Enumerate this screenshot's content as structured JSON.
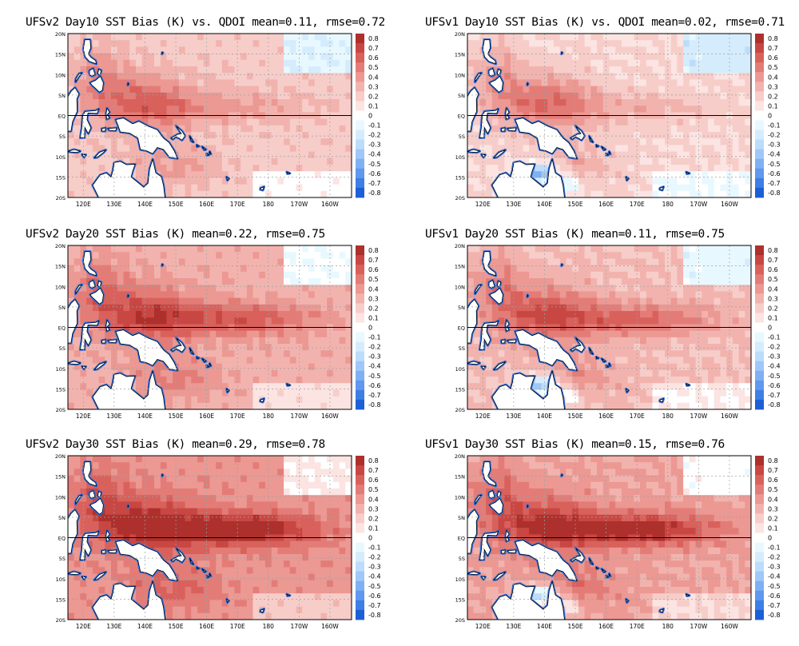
{
  "figure": {
    "panels": [
      {
        "title": "UFSv2 Day10 SST Bias (K) vs. QDOI mean=0.11, rmse=0.72"
      },
      {
        "title": "UFSv1 Day10 SST Bias (K) vs. QDOI mean=0.02, rmse=0.71"
      },
      {
        "title": "UFSv2 Day20 SST Bias (K) mean=0.22, rmse=0.75"
      },
      {
        "title": "UFSv1 Day20 SST Bias (K) mean=0.11, rmse=0.75"
      },
      {
        "title": "UFSv2 Day30 SST Bias (K) mean=0.29, rmse=0.78"
      },
      {
        "title": "UFSv1 Day30 SST Bias (K) mean=0.15, rmse=0.76"
      }
    ]
  },
  "chart_data": [
    {
      "type": "heatmap",
      "title": "UFSv2 Day10 SST Bias (K) vs. QDOI mean=0.11, rmse=0.72",
      "model": "UFSv2",
      "lead_day": 10,
      "mean": 0.11,
      "rmse": 0.72,
      "x_ticks": [
        "120E",
        "130E",
        "140E",
        "150E",
        "160E",
        "170E",
        "180",
        "170W",
        "160W"
      ],
      "y_ticks": [
        "20N",
        "15N",
        "10N",
        "5N",
        "EQ",
        "5S",
        "10S",
        "15S",
        "20S"
      ],
      "xlim": [
        115,
        207
      ],
      "ylim": [
        -20,
        20
      ],
      "colorbar_levels": [
        -0.8,
        -0.7,
        -0.6,
        -0.5,
        -0.4,
        -0.3,
        -0.2,
        -0.1,
        0,
        0.1,
        0.2,
        0.3,
        0.4,
        0.5,
        0.6,
        0.7,
        0.8
      ],
      "colorbar_labels": [
        "0.8",
        "0.7",
        "0.6",
        "0.5",
        "0.4",
        "0.3",
        "0.2",
        "0.1",
        "0",
        "-0.1",
        "-0.2",
        "-0.3",
        "-0.4",
        "-0.5",
        "-0.6",
        "-0.7",
        "-0.8"
      ],
      "grid": true
    },
    {
      "type": "heatmap",
      "title": "UFSv1 Day10 SST Bias (K) vs. QDOI mean=0.02, rmse=0.71",
      "model": "UFSv1",
      "lead_day": 10,
      "mean": 0.02,
      "rmse": 0.71,
      "x_ticks": [
        "120E",
        "130E",
        "140E",
        "150E",
        "160E",
        "170E",
        "180",
        "170W",
        "160W"
      ],
      "y_ticks": [
        "20N",
        "15N",
        "10N",
        "5N",
        "EQ",
        "5S",
        "10S",
        "15S",
        "20S"
      ],
      "xlim": [
        115,
        207
      ],
      "ylim": [
        -20,
        20
      ],
      "colorbar_levels": [
        -0.8,
        -0.7,
        -0.6,
        -0.5,
        -0.4,
        -0.3,
        -0.2,
        -0.1,
        0,
        0.1,
        0.2,
        0.3,
        0.4,
        0.5,
        0.6,
        0.7,
        0.8
      ],
      "colorbar_labels": [
        "0.8",
        "0.7",
        "0.6",
        "0.5",
        "0.4",
        "0.3",
        "0.2",
        "0.1",
        "0",
        "-0.1",
        "-0.2",
        "-0.3",
        "-0.4",
        "-0.5",
        "-0.6",
        "-0.7",
        "-0.8"
      ],
      "grid": true
    },
    {
      "type": "heatmap",
      "title": "UFSv2 Day20 SST Bias (K) mean=0.22, rmse=0.75",
      "model": "UFSv2",
      "lead_day": 20,
      "mean": 0.22,
      "rmse": 0.75,
      "x_ticks": [
        "120E",
        "130E",
        "140E",
        "150E",
        "160E",
        "170E",
        "180",
        "170W",
        "160W"
      ],
      "y_ticks": [
        "20N",
        "15N",
        "10N",
        "5N",
        "EQ",
        "5S",
        "10S",
        "15S",
        "20S"
      ],
      "xlim": [
        115,
        207
      ],
      "ylim": [
        -20,
        20
      ],
      "colorbar_levels": [
        -0.8,
        -0.7,
        -0.6,
        -0.5,
        -0.4,
        -0.3,
        -0.2,
        -0.1,
        0,
        0.1,
        0.2,
        0.3,
        0.4,
        0.5,
        0.6,
        0.7,
        0.8
      ],
      "colorbar_labels": [
        "0.8",
        "0.7",
        "0.6",
        "0.5",
        "0.4",
        "0.3",
        "0.2",
        "0.1",
        "0",
        "-0.1",
        "-0.2",
        "-0.3",
        "-0.4",
        "-0.5",
        "-0.6",
        "-0.7",
        "-0.8"
      ],
      "grid": true
    },
    {
      "type": "heatmap",
      "title": "UFSv1 Day20 SST Bias (K) mean=0.11, rmse=0.75",
      "model": "UFSv1",
      "lead_day": 20,
      "mean": 0.11,
      "rmse": 0.75,
      "x_ticks": [
        "120E",
        "130E",
        "140E",
        "150E",
        "160E",
        "170E",
        "180",
        "170W",
        "160W"
      ],
      "y_ticks": [
        "20N",
        "15N",
        "10N",
        "5N",
        "EQ",
        "5S",
        "10S",
        "15S",
        "20S"
      ],
      "xlim": [
        115,
        207
      ],
      "ylim": [
        -20,
        20
      ],
      "colorbar_levels": [
        -0.8,
        -0.7,
        -0.6,
        -0.5,
        -0.4,
        -0.3,
        -0.2,
        -0.1,
        0,
        0.1,
        0.2,
        0.3,
        0.4,
        0.5,
        0.6,
        0.7,
        0.8
      ],
      "colorbar_labels": [
        "0.8",
        "0.7",
        "0.6",
        "0.5",
        "0.4",
        "0.3",
        "0.2",
        "0.1",
        "0",
        "-0.1",
        "-0.2",
        "-0.3",
        "-0.4",
        "-0.5",
        "-0.6",
        "-0.7",
        "-0.8"
      ],
      "grid": true
    },
    {
      "type": "heatmap",
      "title": "UFSv2 Day30 SST Bias (K) mean=0.29, rmse=0.78",
      "model": "UFSv2",
      "lead_day": 30,
      "mean": 0.29,
      "rmse": 0.78,
      "x_ticks": [
        "120E",
        "130E",
        "140E",
        "150E",
        "160E",
        "170E",
        "180",
        "170W",
        "160W"
      ],
      "y_ticks": [
        "20N",
        "15N",
        "10N",
        "5N",
        "EQ",
        "5S",
        "10S",
        "15S",
        "20S"
      ],
      "xlim": [
        115,
        207
      ],
      "ylim": [
        -20,
        20
      ],
      "colorbar_levels": [
        -0.8,
        -0.7,
        -0.6,
        -0.5,
        -0.4,
        -0.3,
        -0.2,
        -0.1,
        0,
        0.1,
        0.2,
        0.3,
        0.4,
        0.5,
        0.6,
        0.7,
        0.8
      ],
      "colorbar_labels": [
        "0.8",
        "0.7",
        "0.6",
        "0.5",
        "0.4",
        "0.3",
        "0.2",
        "0.1",
        "0",
        "-0.1",
        "-0.2",
        "-0.3",
        "-0.4",
        "-0.5",
        "-0.6",
        "-0.7",
        "-0.8"
      ],
      "grid": true
    },
    {
      "type": "heatmap",
      "title": "UFSv1 Day30 SST Bias (K) mean=0.15, rmse=0.76",
      "model": "UFSv1",
      "lead_day": 30,
      "mean": 0.15,
      "rmse": 0.76,
      "x_ticks": [
        "120E",
        "130E",
        "140E",
        "150E",
        "160E",
        "170E",
        "180",
        "170W",
        "160W"
      ],
      "y_ticks": [
        "20N",
        "15N",
        "10N",
        "5N",
        "EQ",
        "5S",
        "10S",
        "15S",
        "20S"
      ],
      "xlim": [
        115,
        207
      ],
      "ylim": [
        -20,
        20
      ],
      "colorbar_levels": [
        -0.8,
        -0.7,
        -0.6,
        -0.5,
        -0.4,
        -0.3,
        -0.2,
        -0.1,
        0,
        0.1,
        0.2,
        0.3,
        0.4,
        0.5,
        0.6,
        0.7,
        0.8
      ],
      "colorbar_labels": [
        "0.8",
        "0.7",
        "0.6",
        "0.5",
        "0.4",
        "0.3",
        "0.2",
        "0.1",
        "0",
        "-0.1",
        "-0.2",
        "-0.3",
        "-0.4",
        "-0.5",
        "-0.6",
        "-0.7",
        "-0.8"
      ],
      "grid": true
    }
  ],
  "colors": {
    "palette": [
      "#1c5fd6",
      "#3e7fe6",
      "#5f98ee",
      "#7fb0f4",
      "#9fc7f8",
      "#bcdcfb",
      "#d5ecfd",
      "#e8f8ff",
      "#ffffff",
      "#fbe4e2",
      "#f7cdc9",
      "#f2b3ae",
      "#ec9893",
      "#e37c77",
      "#d9615c",
      "#c94743",
      "#ad302c"
    ],
    "coast": "#000000",
    "grid": "#a0a0a0"
  }
}
